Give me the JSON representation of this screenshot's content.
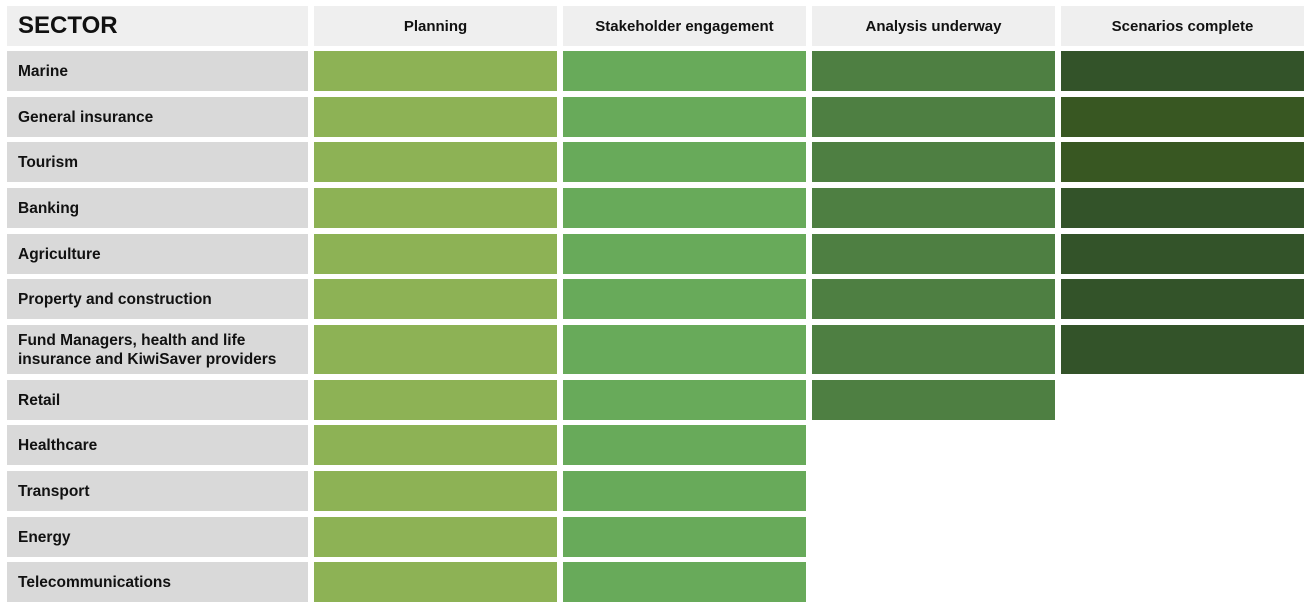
{
  "chart_data": {
    "type": "table",
    "corner_header": "SECTOR",
    "stages": [
      "Planning",
      "Stakeholder engagement",
      "Analysis underway",
      "Scenarios complete"
    ],
    "stage_colors": [
      "#8db255",
      "#68aa5a",
      "#4e7f42",
      "#335329"
    ],
    "alt_stage4_color": "#385722",
    "sectors": [
      {
        "name": "Marine",
        "stages_reached": 4
      },
      {
        "name": "General insurance",
        "stages_reached": 4,
        "alt_last": true
      },
      {
        "name": "Tourism",
        "stages_reached": 4,
        "alt_last": true
      },
      {
        "name": "Banking",
        "stages_reached": 4
      },
      {
        "name": "Agriculture",
        "stages_reached": 4
      },
      {
        "name": "Property and construction",
        "stages_reached": 4
      },
      {
        "name": "Fund Managers, health and life insurance and KiwiSaver providers",
        "stages_reached": 4
      },
      {
        "name": "Retail",
        "stages_reached": 3
      },
      {
        "name": "Healthcare",
        "stages_reached": 2
      },
      {
        "name": "Transport",
        "stages_reached": 2
      },
      {
        "name": "Energy",
        "stages_reached": 2
      },
      {
        "name": "Telecommunications",
        "stages_reached": 2
      }
    ]
  }
}
